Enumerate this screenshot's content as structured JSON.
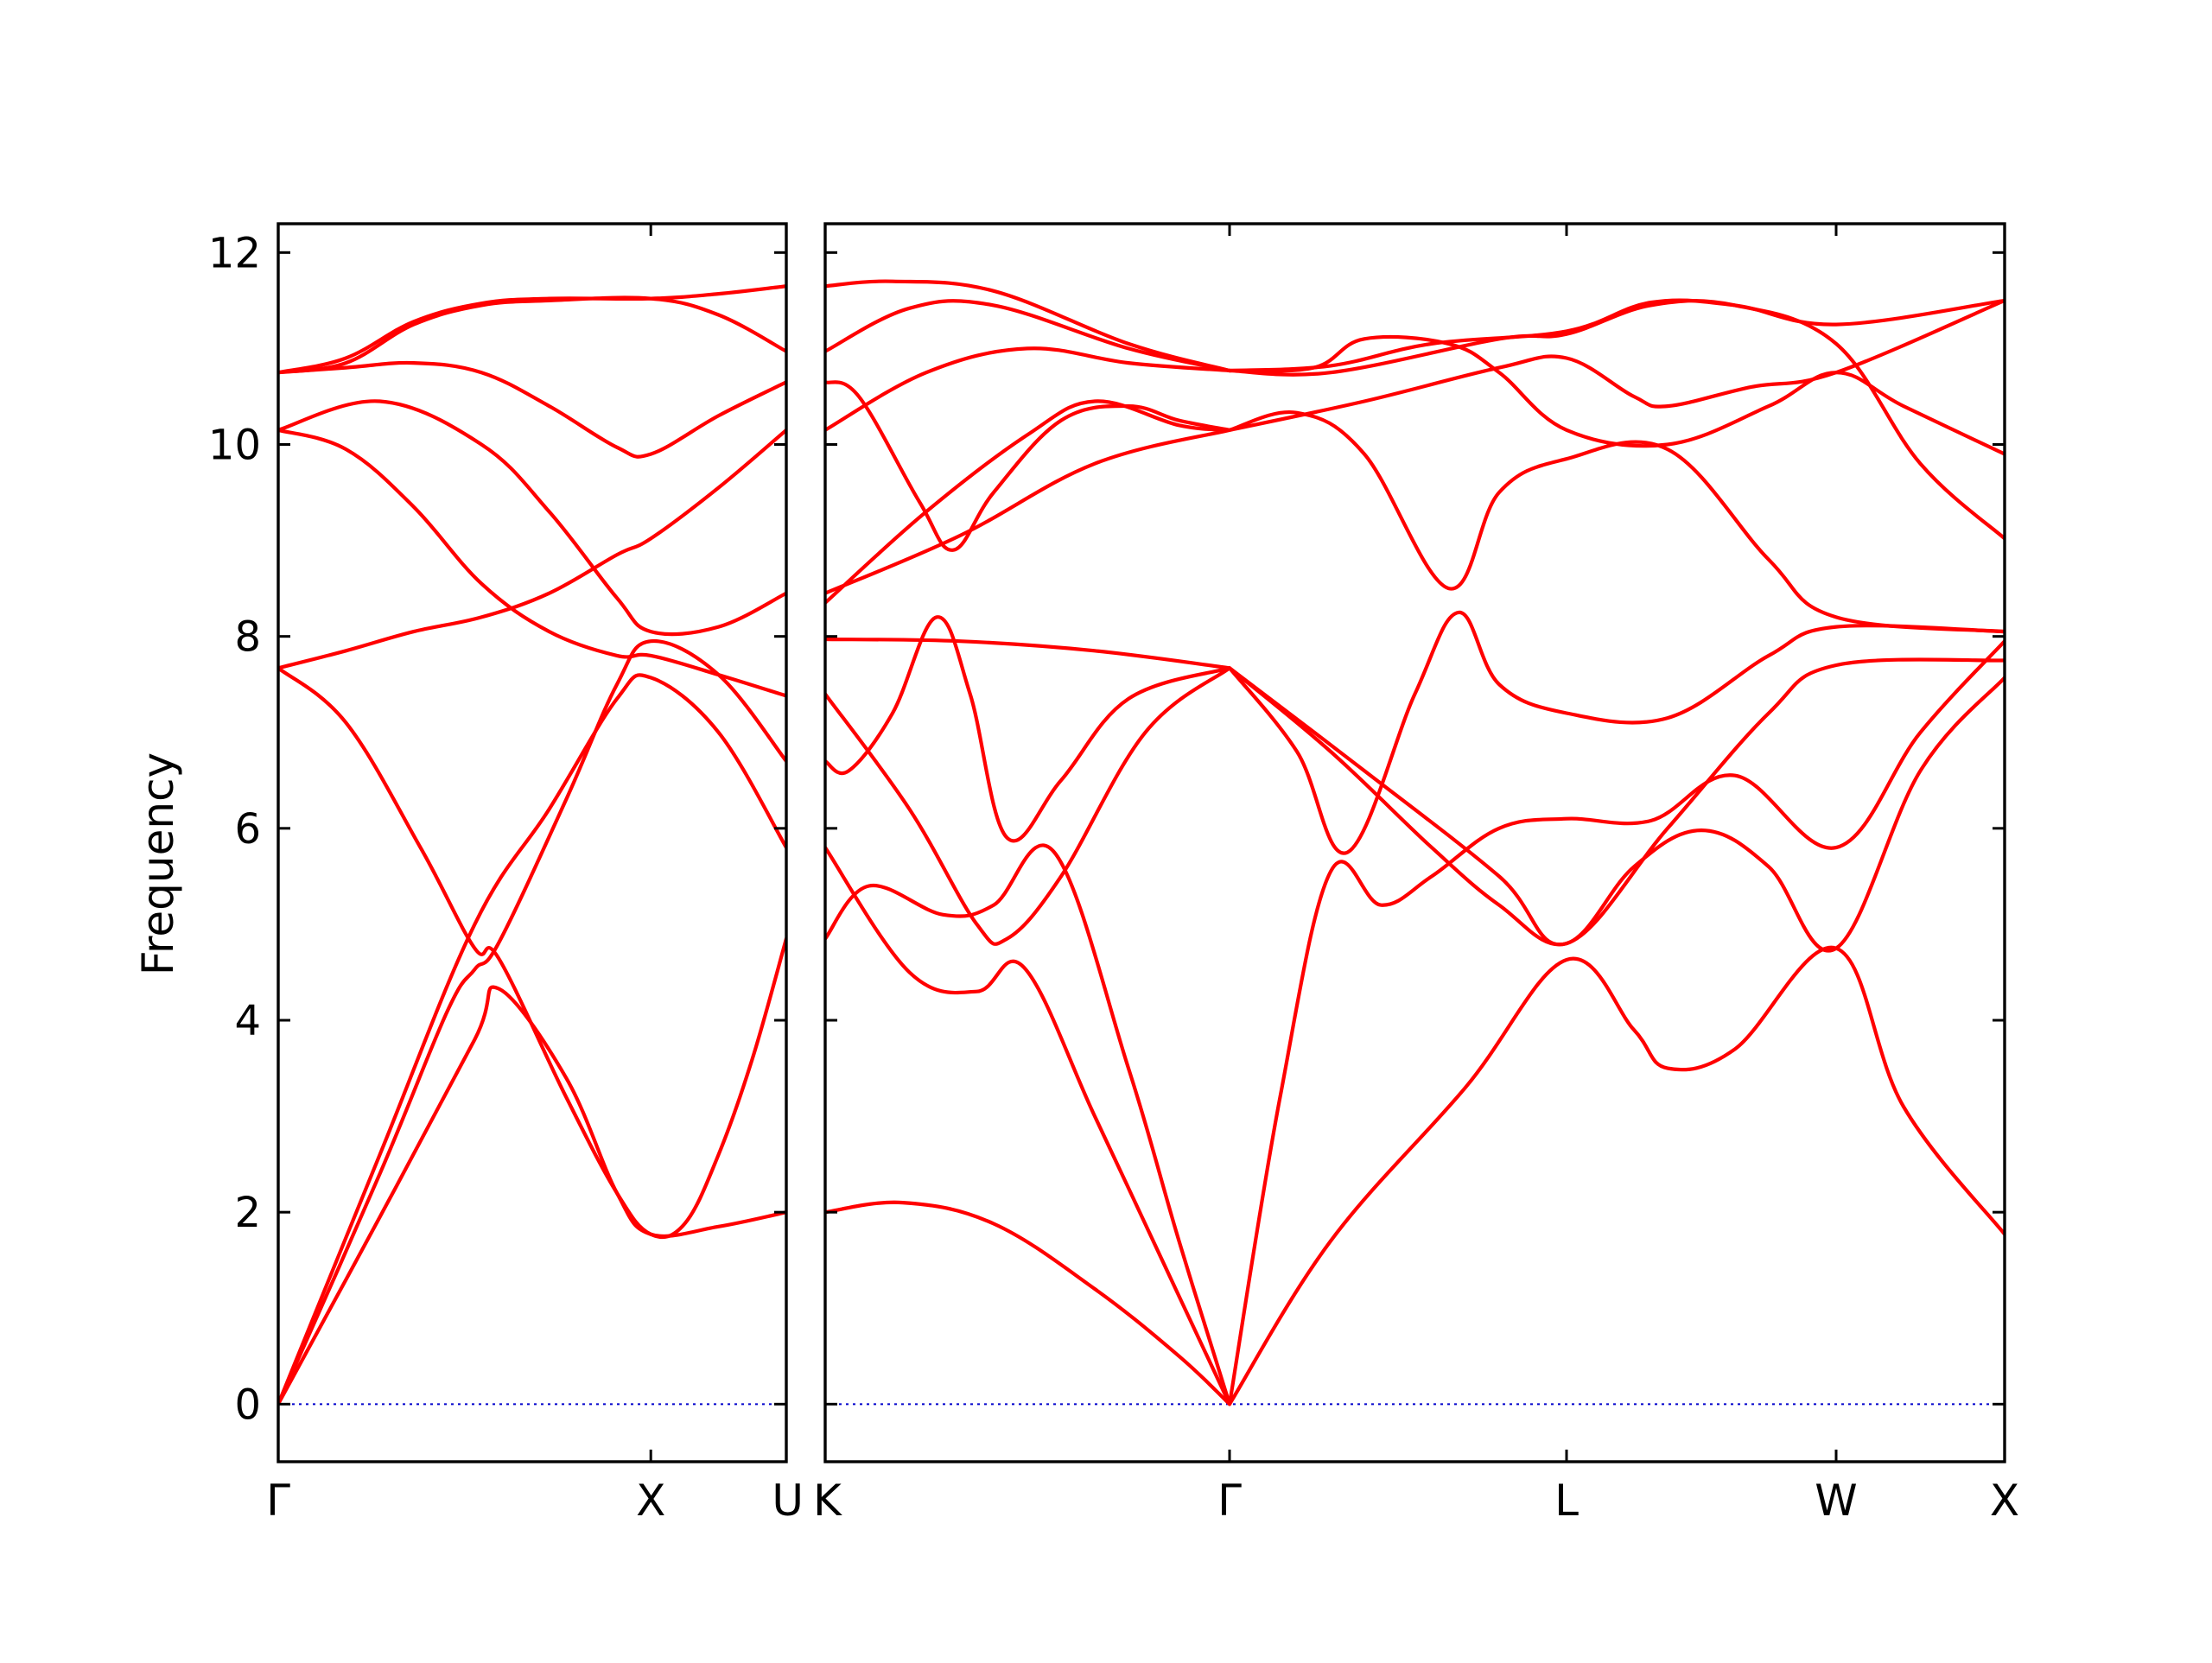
{
  "colors": {
    "band": "#ff0000",
    "zero_line": "#0000cc",
    "axes": "#000000"
  },
  "chart_data": {
    "type": "line",
    "title": "",
    "ylabel": "Frequency",
    "ylim": [
      -0.6,
      12.3
    ],
    "yticks": [
      0,
      2,
      4,
      6,
      8,
      10,
      12
    ],
    "grid": false,
    "legend": "none",
    "high_symmetry_labels": [
      "Γ",
      "X",
      "U",
      "K",
      "Γ",
      "L",
      "W",
      "X"
    ],
    "reference_line": {
      "y": 0,
      "style": "dotted"
    },
    "panels": [
      {
        "xlim": [
          0,
          1.5
        ],
        "points": [
          {
            "x": 0,
            "label": "Γ"
          },
          {
            "x": 1.1,
            "label": "X"
          },
          {
            "x": 1.5,
            "label": "U"
          }
        ],
        "bands": [
          [
            [
              0,
              0
            ],
            [
              0.3,
              1.95
            ],
            [
              0.58,
              3.8
            ],
            [
              0.65,
              4.33
            ],
            [
              0.85,
              3.4
            ],
            [
              1.0,
              2.2
            ],
            [
              1.1,
              1.77
            ],
            [
              1.3,
              1.85
            ],
            [
              1.5,
              2.0
            ]
          ],
          [
            [
              0,
              0
            ],
            [
              0.3,
              2.6
            ],
            [
              0.58,
              5.0
            ],
            [
              0.8,
              6.2
            ],
            [
              1.0,
              7.35
            ],
            [
              1.1,
              7.57
            ],
            [
              1.3,
              7.0
            ],
            [
              1.5,
              5.8
            ]
          ],
          [
            [
              0,
              0
            ],
            [
              0.3,
              2.4
            ],
            [
              0.5,
              4.1
            ],
            [
              0.58,
              4.53
            ],
            [
              0.65,
              4.8
            ],
            [
              0.85,
              6.3
            ],
            [
              1.0,
              7.5
            ],
            [
              1.1,
              7.95
            ],
            [
              1.3,
              7.6
            ],
            [
              1.5,
              6.7
            ]
          ],
          [
            [
              0,
              7.67
            ],
            [
              0.2,
              7.1
            ],
            [
              0.42,
              5.8
            ],
            [
              0.58,
              4.75
            ],
            [
              0.65,
              4.65
            ],
            [
              0.85,
              3.2
            ],
            [
              1.0,
              2.2
            ],
            [
              1.1,
              1.77
            ],
            [
              1.2,
              1.88
            ],
            [
              1.3,
              2.6
            ],
            [
              1.4,
              3.6
            ],
            [
              1.5,
              4.85
            ]
          ],
          [
            [
              0,
              7.67
            ],
            [
              0.2,
              7.85
            ],
            [
              0.4,
              8.05
            ],
            [
              0.6,
              8.2
            ],
            [
              0.8,
              8.45
            ],
            [
              1.0,
              8.85
            ],
            [
              1.1,
              9.02
            ],
            [
              1.3,
              9.55
            ],
            [
              1.5,
              10.15
            ]
          ],
          [
            [
              0,
              10.15
            ],
            [
              0.2,
              9.95
            ],
            [
              0.4,
              9.35
            ],
            [
              0.6,
              8.55
            ],
            [
              0.8,
              8.05
            ],
            [
              1.0,
              7.8
            ],
            [
              1.1,
              7.8
            ],
            [
              1.3,
              7.6
            ],
            [
              1.5,
              7.38
            ]
          ],
          [
            [
              0,
              10.15
            ],
            [
              0.3,
              10.45
            ],
            [
              0.6,
              10.0
            ],
            [
              0.8,
              9.3
            ],
            [
              1.0,
              8.4
            ],
            [
              1.1,
              8.05
            ],
            [
              1.3,
              8.1
            ],
            [
              1.5,
              8.45
            ]
          ],
          [
            [
              0,
              10.75
            ],
            [
              0.2,
              10.8
            ],
            [
              0.4,
              10.85
            ],
            [
              0.6,
              10.75
            ],
            [
              0.8,
              10.4
            ],
            [
              1.0,
              9.97
            ],
            [
              1.1,
              9.9
            ],
            [
              1.3,
              10.3
            ],
            [
              1.5,
              10.65
            ]
          ],
          [
            [
              0,
              10.75
            ],
            [
              0.2,
              10.85
            ],
            [
              0.4,
              11.25
            ],
            [
              0.6,
              11.45
            ],
            [
              0.8,
              11.5
            ],
            [
              1.1,
              11.52
            ],
            [
              1.3,
              11.35
            ],
            [
              1.5,
              10.97
            ]
          ],
          [
            [
              0,
              10.75
            ],
            [
              0.2,
              10.9
            ],
            [
              0.4,
              11.28
            ],
            [
              0.6,
              11.47
            ],
            [
              0.8,
              11.52
            ],
            [
              1.1,
              11.52
            ],
            [
              1.3,
              11.57
            ],
            [
              1.5,
              11.65
            ]
          ]
        ]
      },
      {
        "xlim": [
          1.5,
          5.0
        ],
        "points": [
          {
            "x": 1.5,
            "label": "K"
          },
          {
            "x": 2.7,
            "label": "Γ"
          },
          {
            "x": 3.7,
            "label": "L"
          },
          {
            "x": 4.5,
            "label": "W"
          },
          {
            "x": 5.0,
            "label": "X"
          }
        ],
        "bands": [
          [
            [
              1.5,
              2.0
            ],
            [
              1.73,
              2.1
            ],
            [
              2.0,
              1.88
            ],
            [
              2.3,
              1.2
            ],
            [
              2.55,
              0.5
            ],
            [
              2.7,
              0
            ]
          ],
          [
            [
              1.5,
              4.85
            ],
            [
              1.63,
              5.4
            ],
            [
              1.85,
              5.1
            ],
            [
              2.0,
              5.2
            ],
            [
              2.18,
              5.75
            ],
            [
              2.4,
              3.5
            ],
            [
              2.55,
              1.7
            ],
            [
              2.7,
              0
            ]
          ],
          [
            [
              1.5,
              5.8
            ],
            [
              1.75,
              4.5
            ],
            [
              1.95,
              4.3
            ],
            [
              2.09,
              4.55
            ],
            [
              2.3,
              3.0
            ],
            [
              2.5,
              1.5
            ],
            [
              2.7,
              0
            ]
          ],
          [
            [
              1.5,
              6.7
            ],
            [
              1.57,
              6.6
            ],
            [
              1.7,
              7.2
            ],
            [
              1.83,
              8.2
            ],
            [
              1.93,
              7.4
            ],
            [
              2.04,
              5.9
            ],
            [
              2.2,
              6.5
            ],
            [
              2.4,
              7.35
            ],
            [
              2.7,
              7.67
            ]
          ],
          [
            [
              1.5,
              7.4
            ],
            [
              1.75,
              6.2
            ],
            [
              1.95,
              5.0
            ],
            [
              2.04,
              4.85
            ],
            [
              2.2,
              5.5
            ],
            [
              2.45,
              7.0
            ],
            [
              2.7,
              7.67
            ]
          ],
          [
            [
              1.5,
              7.97
            ],
            [
              1.9,
              7.95
            ],
            [
              2.3,
              7.85
            ],
            [
              2.7,
              7.67
            ]
          ],
          [
            [
              1.5,
              8.45
            ],
            [
              1.9,
              9.05
            ],
            [
              2.3,
              9.8
            ],
            [
              2.7,
              10.15
            ]
          ],
          [
            [
              1.5,
              8.35
            ],
            [
              1.8,
              9.3
            ],
            [
              2.1,
              10.1
            ],
            [
              2.3,
              10.45
            ],
            [
              2.55,
              10.2
            ],
            [
              2.7,
              10.15
            ]
          ],
          [
            [
              1.5,
              10.15
            ],
            [
              1.8,
              10.75
            ],
            [
              2.1,
              11.0
            ],
            [
              2.4,
              10.85
            ],
            [
              2.7,
              10.77
            ]
          ],
          [
            [
              1.5,
              10.65
            ],
            [
              1.6,
              10.5
            ],
            [
              1.78,
              9.4
            ],
            [
              1.88,
              8.9
            ],
            [
              2.0,
              9.5
            ],
            [
              2.2,
              10.25
            ],
            [
              2.4,
              10.4
            ],
            [
              2.55,
              10.25
            ],
            [
              2.7,
              10.15
            ]
          ],
          [
            [
              1.5,
              10.97
            ],
            [
              1.75,
              11.42
            ],
            [
              2.0,
              11.45
            ],
            [
              2.4,
              11.0
            ],
            [
              2.7,
              10.77
            ]
          ],
          [
            [
              1.5,
              11.65
            ],
            [
              1.7,
              11.7
            ],
            [
              2.0,
              11.6
            ],
            [
              2.4,
              11.05
            ],
            [
              2.7,
              10.77
            ]
          ],
          [
            [
              2.7,
              0
            ],
            [
              3.0,
              1.7
            ],
            [
              3.4,
              3.3
            ],
            [
              3.7,
              4.63
            ],
            [
              3.9,
              3.9
            ],
            [
              4.0,
              3.5
            ],
            [
              4.2,
              3.7
            ],
            [
              4.5,
              4.75
            ],
            [
              4.7,
              3.1
            ],
            [
              5.0,
              1.77
            ]
          ],
          [
            [
              2.7,
              0
            ],
            [
              2.85,
              3.2
            ],
            [
              3.0,
              5.55
            ],
            [
              3.15,
              5.2
            ],
            [
              3.3,
              5.5
            ],
            [
              3.5,
              6.0
            ],
            [
              3.7,
              6.1
            ],
            [
              3.95,
              6.08
            ],
            [
              4.2,
              6.55
            ],
            [
              4.5,
              5.8
            ],
            [
              4.75,
              7.0
            ],
            [
              5.0,
              7.95
            ]
          ],
          [
            [
              2.7,
              7.67
            ],
            [
              2.9,
              6.8
            ],
            [
              3.05,
              5.75
            ],
            [
              3.25,
              7.4
            ],
            [
              3.38,
              8.25
            ],
            [
              3.5,
              7.5
            ],
            [
              3.7,
              7.2
            ],
            [
              4.0,
              7.15
            ],
            [
              4.3,
              7.8
            ],
            [
              4.5,
              8.1
            ],
            [
              5.0,
              8.05
            ]
          ],
          [
            [
              2.7,
              7.67
            ],
            [
              3.0,
              6.8
            ],
            [
              3.3,
              5.8
            ],
            [
              3.5,
              5.2
            ],
            [
              3.7,
              4.8
            ],
            [
              3.9,
              5.6
            ],
            [
              4.1,
              5.98
            ],
            [
              4.3,
              5.6
            ],
            [
              4.5,
              4.75
            ],
            [
              4.75,
              6.6
            ],
            [
              5.0,
              7.57
            ]
          ],
          [
            [
              2.7,
              7.67
            ],
            [
              3.1,
              6.6
            ],
            [
              3.5,
              5.5
            ],
            [
              3.7,
              4.8
            ],
            [
              4.0,
              6.0
            ],
            [
              4.3,
              7.2
            ],
            [
              4.5,
              7.7
            ],
            [
              5.0,
              7.75
            ]
          ],
          [
            [
              2.7,
              10.15
            ],
            [
              2.9,
              10.33
            ],
            [
              3.1,
              9.9
            ],
            [
              3.35,
              8.5
            ],
            [
              3.5,
              9.5
            ],
            [
              3.7,
              9.85
            ],
            [
              4.0,
              9.95
            ],
            [
              4.3,
              8.8
            ],
            [
              4.5,
              8.2
            ],
            [
              5.0,
              8.05
            ]
          ],
          [
            [
              2.7,
              10.15
            ],
            [
              3.1,
              10.45
            ],
            [
              3.5,
              10.8
            ],
            [
              3.7,
              10.9
            ],
            [
              3.9,
              10.5
            ],
            [
              4.0,
              10.4
            ],
            [
              4.25,
              10.6
            ],
            [
              4.5,
              10.75
            ],
            [
              5.0,
              11.5
            ]
          ],
          [
            [
              2.7,
              10.77
            ],
            [
              3.0,
              10.82
            ],
            [
              3.3,
              11.05
            ],
            [
              3.7,
              11.18
            ],
            [
              3.95,
              11.48
            ],
            [
              4.2,
              11.45
            ],
            [
              4.5,
              11.25
            ],
            [
              5.0,
              11.5
            ]
          ],
          [
            [
              2.7,
              10.77
            ],
            [
              2.95,
              10.8
            ],
            [
              3.1,
              11.1
            ],
            [
              3.35,
              11.05
            ],
            [
              3.5,
              10.75
            ],
            [
              3.7,
              10.15
            ],
            [
              4.0,
              10.0
            ],
            [
              4.3,
              10.4
            ],
            [
              4.5,
              10.75
            ],
            [
              4.7,
              10.4
            ],
            [
              5.0,
              9.9
            ]
          ],
          [
            [
              2.7,
              10.77
            ],
            [
              3.0,
              10.75
            ],
            [
              3.5,
              11.1
            ],
            [
              3.7,
              11.15
            ],
            [
              3.95,
              11.45
            ],
            [
              4.2,
              11.45
            ],
            [
              4.5,
              11.05
            ],
            [
              4.75,
              9.8
            ],
            [
              5.0,
              9.02
            ]
          ]
        ]
      }
    ]
  }
}
